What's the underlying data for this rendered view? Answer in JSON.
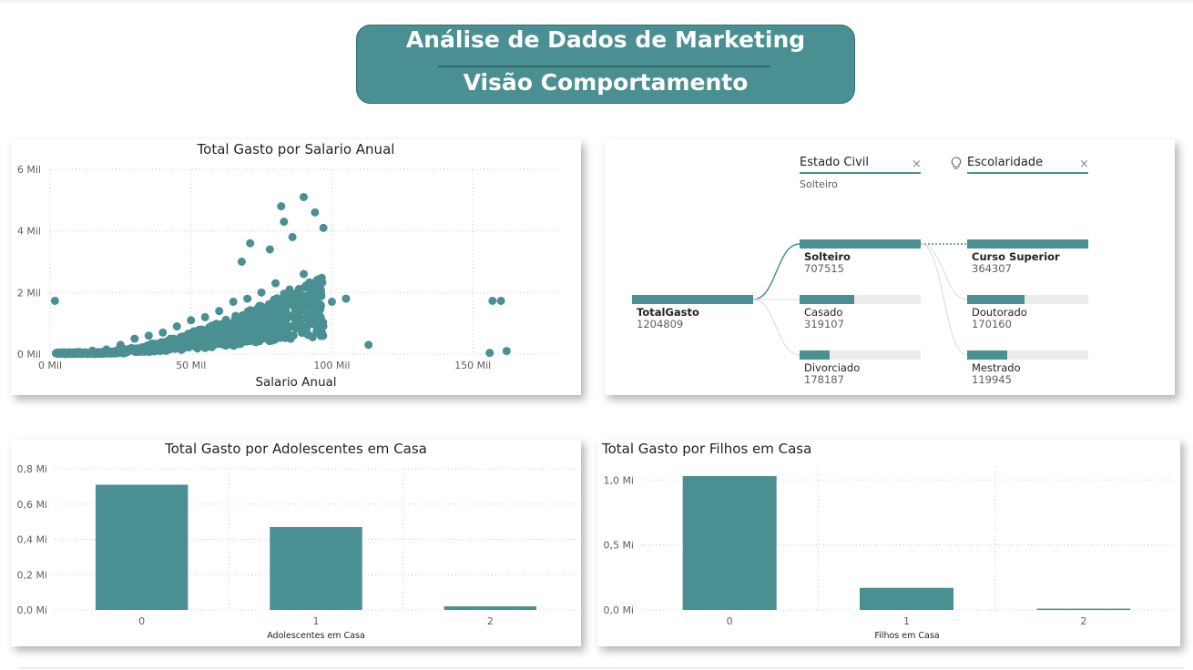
{
  "header": {
    "title": "Análise de Dados de Marketing",
    "subtitle": "Visão Comportamento"
  },
  "colors": {
    "accent": "#4a8f91",
    "track": "#ececec",
    "grid": "#c8c8c8"
  },
  "scatter": {
    "title": "Total Gasto por Salario Anual",
    "xlabel": "Salario Anual",
    "xticks": [
      "0 Mil",
      "50 Mil",
      "100 Mil",
      "150 Mil"
    ],
    "yticks": [
      "0 Mil",
      "2 Mil",
      "4 Mil",
      "6 Mil"
    ]
  },
  "tree": {
    "headers": {
      "level1": "Estado Civil",
      "level2": "Escolaridade"
    },
    "filter_value": "Solteiro",
    "root": {
      "label": "TotalGasto",
      "value": "1204809"
    },
    "level1": [
      {
        "label": "Solteiro",
        "value": "707515"
      },
      {
        "label": "Casado",
        "value": "319107"
      },
      {
        "label": "Divorciado",
        "value": "178187"
      }
    ],
    "level2": [
      {
        "label": "Curso Superior",
        "value": "364307"
      },
      {
        "label": "Doutorado",
        "value": "170160"
      },
      {
        "label": "Mestrado",
        "value": "119945"
      }
    ],
    "close_symbol": "×"
  },
  "teen": {
    "title": "Total Gasto por Adolescentes em Casa",
    "xlabel": "Adolescentes em Casa",
    "yticks": [
      "0,0 Mi",
      "0,2 Mi",
      "0,4 Mi",
      "0,6 Mi",
      "0,8 Mi"
    ]
  },
  "kids": {
    "title": "Total Gasto por Filhos em Casa",
    "xlabel": "Filhos em Casa",
    "yticks": [
      "0,0 Mi",
      "0,5 Mi",
      "1,0 Mi"
    ]
  },
  "chart_data": [
    {
      "type": "scatter",
      "title": "Total Gasto por Salario Anual",
      "xlabel": "Salario Anual",
      "ylabel": "",
      "xlim": [
        0,
        180000
      ],
      "ylim": [
        0,
        6000
      ],
      "grid": true,
      "points": [
        [
          1730,
          1730
        ],
        [
          5000,
          60
        ],
        [
          8000,
          50
        ],
        [
          10000,
          70
        ],
        [
          15000,
          110
        ],
        [
          20000,
          150
        ],
        [
          25000,
          300
        ],
        [
          30000,
          500
        ],
        [
          35000,
          600
        ],
        [
          40000,
          700
        ],
        [
          45000,
          900
        ],
        [
          50000,
          1100
        ],
        [
          55000,
          1200
        ],
        [
          60000,
          1400
        ],
        [
          65000,
          1700
        ],
        [
          70000,
          1800
        ],
        [
          75000,
          2000
        ],
        [
          80000,
          2300
        ],
        [
          85000,
          2100
        ],
        [
          90000,
          2600
        ],
        [
          95000,
          1500
        ],
        [
          100000,
          1700
        ],
        [
          105000,
          1800
        ],
        [
          113000,
          300
        ],
        [
          157000,
          1730
        ],
        [
          160000,
          1730
        ],
        [
          156000,
          40
        ],
        [
          162000,
          100
        ],
        [
          82000,
          4800
        ],
        [
          90000,
          5100
        ],
        [
          94000,
          4600
        ],
        [
          97000,
          4100
        ],
        [
          83000,
          4300
        ],
        [
          86000,
          3800
        ],
        [
          71000,
          3600
        ],
        [
          78000,
          3400
        ],
        [
          68000,
          3000
        ]
      ]
    },
    {
      "type": "bar",
      "title": "Total Gasto por Adolescentes em Casa",
      "xlabel": "Adolescentes em Casa",
      "ylabel": "",
      "categories": [
        "0",
        "1",
        "2"
      ],
      "values": [
        0.71,
        0.47,
        0.02
      ],
      "ylim": [
        0,
        0.8
      ],
      "grid": true
    },
    {
      "type": "bar",
      "title": "Total Gasto por Filhos em Casa",
      "xlabel": "Filhos em Casa",
      "ylabel": "",
      "categories": [
        "0",
        "1",
        "2"
      ],
      "values": [
        1.03,
        0.17,
        0.01
      ],
      "ylim": [
        0,
        1.1
      ],
      "grid": true
    }
  ]
}
